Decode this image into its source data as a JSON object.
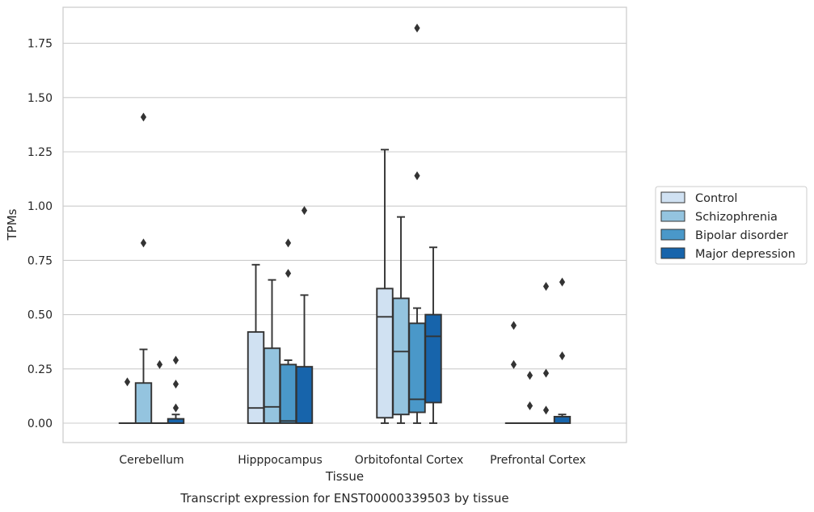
{
  "chart_data": {
    "type": "box",
    "title": "Transcript expression for ENST00000339503 by tissue",
    "xlabel": "Tissue",
    "ylabel": "TPMs",
    "ylim": [
      -0.09,
      1.92
    ],
    "yticks": [
      0.0,
      0.25,
      0.5,
      0.75,
      1.0,
      1.25,
      1.5,
      1.75
    ],
    "ytick_labels": [
      "0.00",
      "0.25",
      "0.50",
      "0.75",
      "1.00",
      "1.25",
      "1.50",
      "1.75"
    ],
    "grid": true,
    "legend_position": "right",
    "categories": [
      "Cerebellum",
      "Hipppocampus",
      "Orbitofontal Cortex",
      "Prefrontal Cortex"
    ],
    "series": [
      {
        "name": "Control",
        "color": "#d0e1f2",
        "boxes": [
          {
            "q1": 0,
            "median": 0,
            "q3": 0,
            "whisker_low": 0,
            "whisker_high": 0,
            "outliers": [
              0.19
            ]
          },
          {
            "q1": 0,
            "median": 0.07,
            "q3": 0.42,
            "whisker_low": 0,
            "whisker_high": 0.73,
            "outliers": []
          },
          {
            "q1": 0.025,
            "median": 0.49,
            "q3": 0.62,
            "whisker_low": 0,
            "whisker_high": 1.26,
            "outliers": []
          },
          {
            "q1": 0,
            "median": 0,
            "q3": 0,
            "whisker_low": 0,
            "whisker_high": 0,
            "outliers": [
              0.45,
              0.27
            ]
          }
        ]
      },
      {
        "name": "Schizophrenia",
        "color": "#94c4df",
        "boxes": [
          {
            "q1": 0,
            "median": 0,
            "q3": 0.185,
            "whisker_low": 0,
            "whisker_high": 0.34,
            "outliers": [
              1.41,
              0.83
            ]
          },
          {
            "q1": 0,
            "median": 0.075,
            "q3": 0.345,
            "whisker_low": 0,
            "whisker_high": 0.66,
            "outliers": []
          },
          {
            "q1": 0.04,
            "median": 0.33,
            "q3": 0.575,
            "whisker_low": 0,
            "whisker_high": 0.95,
            "outliers": []
          },
          {
            "q1": 0,
            "median": 0,
            "q3": 0,
            "whisker_low": 0,
            "whisker_high": 0,
            "outliers": [
              0.22,
              0.08
            ]
          }
        ]
      },
      {
        "name": "Bipolar disorder",
        "color": "#4a98c9",
        "boxes": [
          {
            "q1": 0,
            "median": 0,
            "q3": 0,
            "whisker_low": 0,
            "whisker_high": 0,
            "outliers": [
              0.27
            ]
          },
          {
            "q1": 0,
            "median": 0.01,
            "q3": 0.27,
            "whisker_low": 0,
            "whisker_high": 0.29,
            "outliers": [
              0.83,
              0.69
            ]
          },
          {
            "q1": 0.05,
            "median": 0.11,
            "q3": 0.46,
            "whisker_low": 0,
            "whisker_high": 0.53,
            "outliers": [
              1.82,
              1.14
            ]
          },
          {
            "q1": 0,
            "median": 0,
            "q3": 0,
            "whisker_low": 0,
            "whisker_high": 0,
            "outliers": [
              0.63,
              0.23,
              0.06
            ]
          }
        ]
      },
      {
        "name": "Major depression",
        "color": "#1764ab",
        "boxes": [
          {
            "q1": 0,
            "median": 0,
            "q3": 0.02,
            "whisker_low": 0,
            "whisker_high": 0.04,
            "outliers": [
              0.29,
              0.18,
              0.07
            ]
          },
          {
            "q1": 0,
            "median": 0,
            "q3": 0.26,
            "whisker_low": 0,
            "whisker_high": 0.59,
            "outliers": [
              0.98
            ]
          },
          {
            "q1": 0.095,
            "median": 0.4,
            "q3": 0.5,
            "whisker_low": 0,
            "whisker_high": 0.81,
            "outliers": []
          },
          {
            "q1": 0,
            "median": 0,
            "q3": 0.03,
            "whisker_low": 0,
            "whisker_high": 0.04,
            "outliers": [
              0.65,
              0.31
            ]
          }
        ]
      }
    ]
  }
}
